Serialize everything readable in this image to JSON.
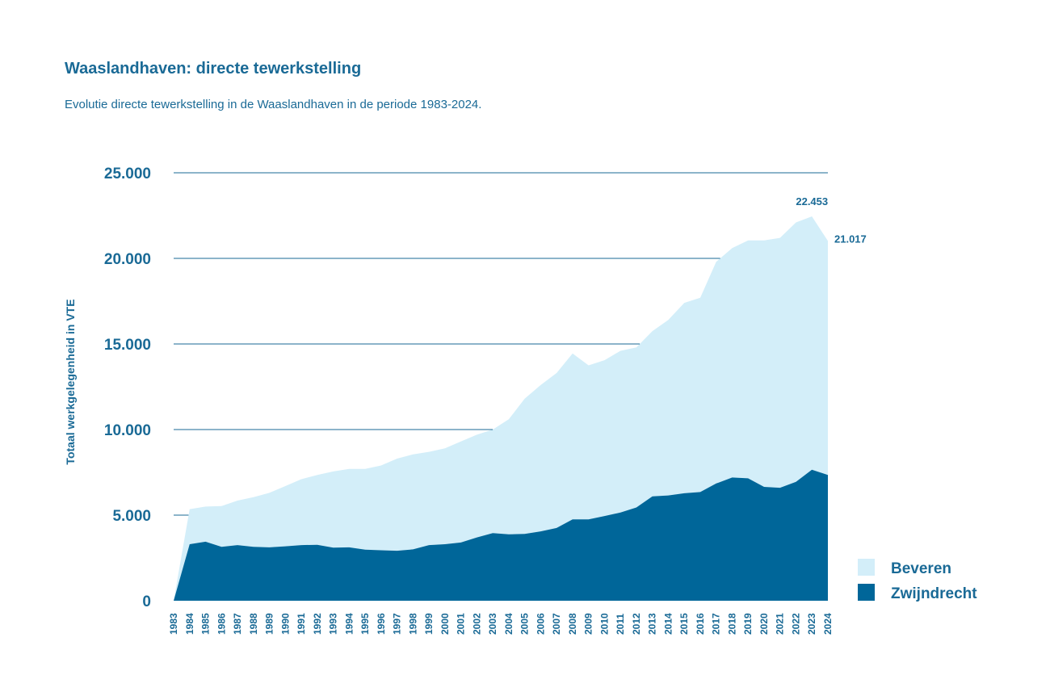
{
  "header": {
    "title": "Waaslandhaven: directe tewerkstelling",
    "subtitle": "Evolutie directe tewerkstelling in de Waaslandhaven in de periode 1983-2024."
  },
  "chart_data": {
    "type": "area",
    "stacked": true,
    "title": "Waaslandhaven: directe tewerkstelling",
    "subtitle": "Evolutie directe tewerkstelling in de Waaslandhaven in de periode 1983-2024.",
    "xlabel": "",
    "ylabel": "Totaal werkgelegenheid in VTE",
    "ylim": [
      0,
      25000
    ],
    "yticks": [
      0,
      5000,
      10000,
      15000,
      20000,
      25000
    ],
    "ytick_labels": [
      "0",
      "5.000",
      "10.000",
      "15.000",
      "20.000",
      "25.000"
    ],
    "grid": true,
    "legend_position": "bottom-right",
    "x": [
      "1983",
      "1984",
      "1985",
      "1986",
      "1987",
      "1988",
      "1989",
      "1990",
      "1991",
      "1992",
      "1993",
      "1994",
      "1995",
      "1996",
      "1997",
      "1998",
      "1999",
      "2000",
      "2001",
      "2002",
      "2003",
      "2004",
      "2005",
      "2006",
      "2007",
      "2008",
      "2009",
      "2010",
      "2011",
      "2012",
      "2013",
      "2014",
      "2015",
      "2016",
      "2017",
      "2018",
      "2019",
      "2020",
      "2021",
      "2022",
      "2023",
      "2024"
    ],
    "series": [
      {
        "name": "Zwijndrecht",
        "color": "#006699",
        "values": [
          0,
          3300,
          3450,
          3150,
          3250,
          3150,
          3120,
          3180,
          3250,
          3270,
          3100,
          3120,
          2980,
          2950,
          2920,
          3000,
          3250,
          3300,
          3400,
          3700,
          3950,
          3880,
          3900,
          4050,
          4250,
          4750,
          4750,
          4950,
          5150,
          5450,
          6100,
          6150,
          6280,
          6350,
          6850,
          7200,
          7150,
          6650,
          6600,
          6950,
          7650,
          7350
        ]
      },
      {
        "name": "Beveren",
        "color": "#d3eef9",
        "values": [
          0,
          2050,
          2050,
          2380,
          2600,
          2900,
          3180,
          3520,
          3850,
          4080,
          4450,
          4580,
          4720,
          4950,
          5380,
          5550,
          5450,
          5600,
          5900,
          6000,
          6050,
          6720,
          7900,
          8550,
          9050,
          9700,
          9000,
          9100,
          9450,
          9350,
          9650,
          10250,
          11120,
          11350,
          12950,
          13400,
          13900,
          14400,
          14600,
          15150,
          14803,
          13667
        ]
      }
    ],
    "totals": [
      0,
      5350,
      5500,
      5530,
      5850,
      6050,
      6300,
      6700,
      7100,
      7350,
      7550,
      7700,
      7700,
      7900,
      8300,
      8550,
      8700,
      8900,
      9300,
      9700,
      10000,
      10600,
      11800,
      12600,
      13300,
      14450,
      13750,
      14050,
      14600,
      14800,
      15750,
      16400,
      17400,
      17700,
      19800,
      20600,
      21050,
      21050,
      21200,
      22100,
      22453,
      21017
    ],
    "annotations": [
      {
        "x": "2023",
        "label": "22.453"
      },
      {
        "x": "2024",
        "label": "21.017"
      }
    ]
  }
}
